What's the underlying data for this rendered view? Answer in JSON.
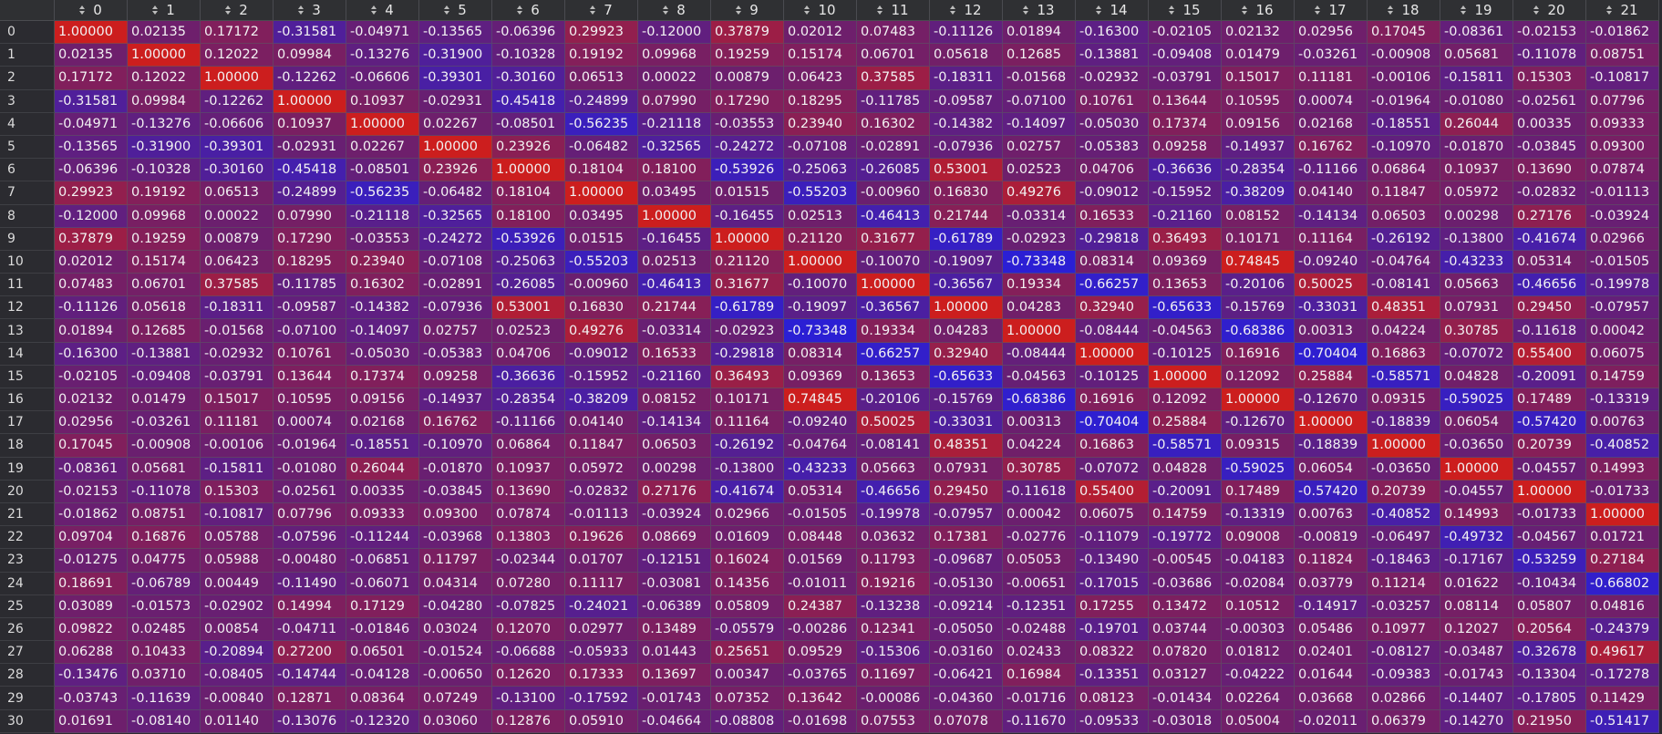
{
  "columns": [
    "0",
    "1",
    "2",
    "3",
    "4",
    "5",
    "6",
    "7",
    "8",
    "9",
    "10",
    "11",
    "12",
    "13",
    "14",
    "15",
    "16",
    "17",
    "18",
    "19",
    "20",
    "21"
  ],
  "row_labels": [
    "0",
    "1",
    "2",
    "3",
    "4",
    "5",
    "6",
    "7",
    "8",
    "9",
    "10",
    "11",
    "12",
    "13",
    "14",
    "15",
    "16",
    "17",
    "18",
    "19",
    "20",
    "21",
    "22",
    "23",
    "24",
    "25",
    "26",
    "27",
    "28",
    "29",
    "30"
  ],
  "colors": {
    "negative": "#2a1fd6",
    "neutral": "#6b1f6e",
    "positive": "#cc1e1e",
    "background": "#2b2b30"
  },
  "icons": {
    "header_sort": "sort-updown-icon"
  },
  "rows": [
    [
      "1.00000",
      "0.02135",
      "0.17172",
      "-0.31581",
      "-0.04971",
      "-0.13565",
      "-0.06396",
      "0.29923",
      "-0.12000",
      "0.37879",
      "0.02012",
      "0.07483",
      "-0.11126",
      "0.01894",
      "-0.16300",
      "-0.02105",
      "0.02132",
      "0.02956",
      "0.17045",
      "-0.08361",
      "-0.02153",
      "-0.01862"
    ],
    [
      "0.02135",
      "1.00000",
      "0.12022",
      "0.09984",
      "-0.13276",
      "-0.31900",
      "-0.10328",
      "0.19192",
      "0.09968",
      "0.19259",
      "0.15174",
      "0.06701",
      "0.05618",
      "0.12685",
      "-0.13881",
      "-0.09408",
      "0.01479",
      "-0.03261",
      "-0.00908",
      "0.05681",
      "-0.11078",
      "0.08751"
    ],
    [
      "0.17172",
      "0.12022",
      "1.00000",
      "-0.12262",
      "-0.06606",
      "-0.39301",
      "-0.30160",
      "0.06513",
      "0.00022",
      "0.00879",
      "0.06423",
      "0.37585",
      "-0.18311",
      "-0.01568",
      "-0.02932",
      "-0.03791",
      "0.15017",
      "0.11181",
      "-0.00106",
      "-0.15811",
      "0.15303",
      "-0.10817"
    ],
    [
      "-0.31581",
      "0.09984",
      "-0.12262",
      "1.00000",
      "0.10937",
      "-0.02931",
      "-0.45418",
      "-0.24899",
      "0.07990",
      "0.17290",
      "0.18295",
      "-0.11785",
      "-0.09587",
      "-0.07100",
      "0.10761",
      "0.13644",
      "0.10595",
      "0.00074",
      "-0.01964",
      "-0.01080",
      "-0.02561",
      "0.07796"
    ],
    [
      "-0.04971",
      "-0.13276",
      "-0.06606",
      "0.10937",
      "1.00000",
      "0.02267",
      "-0.08501",
      "-0.56235",
      "-0.21118",
      "-0.03553",
      "0.23940",
      "0.16302",
      "-0.14382",
      "-0.14097",
      "-0.05030",
      "0.17374",
      "0.09156",
      "0.02168",
      "-0.18551",
      "0.26044",
      "0.00335",
      "0.09333"
    ],
    [
      "-0.13565",
      "-0.31900",
      "-0.39301",
      "-0.02931",
      "0.02267",
      "1.00000",
      "0.23926",
      "-0.06482",
      "-0.32565",
      "-0.24272",
      "-0.07108",
      "-0.02891",
      "-0.07936",
      "0.02757",
      "-0.05383",
      "0.09258",
      "-0.14937",
      "0.16762",
      "-0.10970",
      "-0.01870",
      "-0.03845",
      "0.09300"
    ],
    [
      "-0.06396",
      "-0.10328",
      "-0.30160",
      "-0.45418",
      "-0.08501",
      "0.23926",
      "1.00000",
      "0.18104",
      "0.18100",
      "-0.53926",
      "-0.25063",
      "-0.26085",
      "0.53001",
      "0.02523",
      "0.04706",
      "-0.36636",
      "-0.28354",
      "-0.11166",
      "0.06864",
      "0.10937",
      "0.13690",
      "0.07874"
    ],
    [
      "0.29923",
      "0.19192",
      "0.06513",
      "-0.24899",
      "-0.56235",
      "-0.06482",
      "0.18104",
      "1.00000",
      "0.03495",
      "0.01515",
      "-0.55203",
      "-0.00960",
      "0.16830",
      "0.49276",
      "-0.09012",
      "-0.15952",
      "-0.38209",
      "0.04140",
      "0.11847",
      "0.05972",
      "-0.02832",
      "-0.01113"
    ],
    [
      "-0.12000",
      "0.09968",
      "0.00022",
      "0.07990",
      "-0.21118",
      "-0.32565",
      "0.18100",
      "0.03495",
      "1.00000",
      "-0.16455",
      "0.02513",
      "-0.46413",
      "0.21744",
      "-0.03314",
      "0.16533",
      "-0.21160",
      "0.08152",
      "-0.14134",
      "0.06503",
      "0.00298",
      "0.27176",
      "-0.03924"
    ],
    [
      "0.37879",
      "0.19259",
      "0.00879",
      "0.17290",
      "-0.03553",
      "-0.24272",
      "-0.53926",
      "0.01515",
      "-0.16455",
      "1.00000",
      "0.21120",
      "0.31677",
      "-0.61789",
      "-0.02923",
      "-0.29818",
      "0.36493",
      "0.10171",
      "0.11164",
      "-0.26192",
      "-0.13800",
      "-0.41674",
      "0.02966"
    ],
    [
      "0.02012",
      "0.15174",
      "0.06423",
      "0.18295",
      "0.23940",
      "-0.07108",
      "-0.25063",
      "-0.55203",
      "0.02513",
      "0.21120",
      "1.00000",
      "-0.10070",
      "-0.19097",
      "-0.73348",
      "0.08314",
      "0.09369",
      "0.74845",
      "-0.09240",
      "-0.04764",
      "-0.43233",
      "0.05314",
      "-0.01505"
    ],
    [
      "0.07483",
      "0.06701",
      "0.37585",
      "-0.11785",
      "0.16302",
      "-0.02891",
      "-0.26085",
      "-0.00960",
      "-0.46413",
      "0.31677",
      "-0.10070",
      "1.00000",
      "-0.36567",
      "0.19334",
      "-0.66257",
      "0.13653",
      "-0.20106",
      "0.50025",
      "-0.08141",
      "0.05663",
      "-0.46656",
      "-0.19978"
    ],
    [
      "-0.11126",
      "0.05618",
      "-0.18311",
      "-0.09587",
      "-0.14382",
      "-0.07936",
      "0.53001",
      "0.16830",
      "0.21744",
      "-0.61789",
      "-0.19097",
      "-0.36567",
      "1.00000",
      "0.04283",
      "0.32940",
      "-0.65633",
      "-0.15769",
      "-0.33031",
      "0.48351",
      "0.07931",
      "0.29450",
      "-0.07957"
    ],
    [
      "0.01894",
      "0.12685",
      "-0.01568",
      "-0.07100",
      "-0.14097",
      "0.02757",
      "0.02523",
      "0.49276",
      "-0.03314",
      "-0.02923",
      "-0.73348",
      "0.19334",
      "0.04283",
      "1.00000",
      "-0.08444",
      "-0.04563",
      "-0.68386",
      "0.00313",
      "0.04224",
      "0.30785",
      "-0.11618",
      "0.00042"
    ],
    [
      "-0.16300",
      "-0.13881",
      "-0.02932",
      "0.10761",
      "-0.05030",
      "-0.05383",
      "0.04706",
      "-0.09012",
      "0.16533",
      "-0.29818",
      "0.08314",
      "-0.66257",
      "0.32940",
      "-0.08444",
      "1.00000",
      "-0.10125",
      "0.16916",
      "-0.70404",
      "0.16863",
      "-0.07072",
      "0.55400",
      "0.06075"
    ],
    [
      "-0.02105",
      "-0.09408",
      "-0.03791",
      "0.13644",
      "0.17374",
      "0.09258",
      "-0.36636",
      "-0.15952",
      "-0.21160",
      "0.36493",
      "0.09369",
      "0.13653",
      "-0.65633",
      "-0.04563",
      "-0.10125",
      "1.00000",
      "0.12092",
      "0.25884",
      "-0.58571",
      "0.04828",
      "-0.20091",
      "0.14759"
    ],
    [
      "0.02132",
      "0.01479",
      "0.15017",
      "0.10595",
      "0.09156",
      "-0.14937",
      "-0.28354",
      "-0.38209",
      "0.08152",
      "0.10171",
      "0.74845",
      "-0.20106",
      "-0.15769",
      "-0.68386",
      "0.16916",
      "0.12092",
      "1.00000",
      "-0.12670",
      "0.09315",
      "-0.59025",
      "0.17489",
      "-0.13319"
    ],
    [
      "0.02956",
      "-0.03261",
      "0.11181",
      "0.00074",
      "0.02168",
      "0.16762",
      "-0.11166",
      "0.04140",
      "-0.14134",
      "0.11164",
      "-0.09240",
      "0.50025",
      "-0.33031",
      "0.00313",
      "-0.70404",
      "0.25884",
      "-0.12670",
      "1.00000",
      "-0.18839",
      "0.06054",
      "-0.57420",
      "0.00763"
    ],
    [
      "0.17045",
      "-0.00908",
      "-0.00106",
      "-0.01964",
      "-0.18551",
      "-0.10970",
      "0.06864",
      "0.11847",
      "0.06503",
      "-0.26192",
      "-0.04764",
      "-0.08141",
      "0.48351",
      "0.04224",
      "0.16863",
      "-0.58571",
      "0.09315",
      "-0.18839",
      "1.00000",
      "-0.03650",
      "0.20739",
      "-0.40852"
    ],
    [
      "-0.08361",
      "0.05681",
      "-0.15811",
      "-0.01080",
      "0.26044",
      "-0.01870",
      "0.10937",
      "0.05972",
      "0.00298",
      "-0.13800",
      "-0.43233",
      "0.05663",
      "0.07931",
      "0.30785",
      "-0.07072",
      "0.04828",
      "-0.59025",
      "0.06054",
      "-0.03650",
      "1.00000",
      "-0.04557",
      "0.14993"
    ],
    [
      "-0.02153",
      "-0.11078",
      "0.15303",
      "-0.02561",
      "0.00335",
      "-0.03845",
      "0.13690",
      "-0.02832",
      "0.27176",
      "-0.41674",
      "0.05314",
      "-0.46656",
      "0.29450",
      "-0.11618",
      "0.55400",
      "-0.20091",
      "0.17489",
      "-0.57420",
      "0.20739",
      "-0.04557",
      "1.00000",
      "-0.01733"
    ],
    [
      "-0.01862",
      "0.08751",
      "-0.10817",
      "0.07796",
      "0.09333",
      "0.09300",
      "0.07874",
      "-0.01113",
      "-0.03924",
      "0.02966",
      "-0.01505",
      "-0.19978",
      "-0.07957",
      "0.00042",
      "0.06075",
      "0.14759",
      "-0.13319",
      "0.00763",
      "-0.40852",
      "0.14993",
      "-0.01733",
      "1.00000"
    ],
    [
      "0.09704",
      "0.16876",
      "0.05788",
      "-0.07596",
      "-0.11244",
      "-0.03968",
      "0.13803",
      "0.19626",
      "0.08669",
      "0.01609",
      "0.08448",
      "0.03632",
      "0.17381",
      "-0.02776",
      "-0.11079",
      "-0.19772",
      "0.09008",
      "-0.00819",
      "-0.06497",
      "-0.49732",
      "-0.04567",
      "0.01721"
    ],
    [
      "-0.01275",
      "0.04775",
      "0.05988",
      "-0.00480",
      "-0.06851",
      "0.11797",
      "-0.02344",
      "0.01707",
      "-0.12151",
      "0.16024",
      "0.01569",
      "0.11793",
      "-0.09687",
      "0.05053",
      "-0.13490",
      "-0.00545",
      "-0.04183",
      "0.11824",
      "-0.18463",
      "-0.17167",
      "-0.53259",
      "0.27184"
    ],
    [
      "0.18691",
      "-0.06789",
      "0.00449",
      "-0.11490",
      "-0.06071",
      "0.04314",
      "0.07280",
      "0.11117",
      "-0.03081",
      "0.14356",
      "-0.01011",
      "0.19216",
      "-0.05130",
      "-0.00651",
      "-0.17015",
      "-0.03686",
      "-0.02084",
      "0.03779",
      "0.11214",
      "0.01622",
      "-0.10434",
      "-0.66802"
    ],
    [
      "0.03089",
      "-0.01573",
      "-0.02902",
      "0.14994",
      "0.17129",
      "-0.04280",
      "-0.07825",
      "-0.24021",
      "-0.06389",
      "0.05809",
      "0.24387",
      "-0.13238",
      "-0.09214",
      "-0.12351",
      "0.17255",
      "0.13472",
      "0.10512",
      "-0.14917",
      "-0.03257",
      "0.08114",
      "0.05807",
      "0.04816"
    ],
    [
      "0.09822",
      "0.02485",
      "0.00854",
      "-0.04711",
      "-0.01846",
      "0.03024",
      "0.12070",
      "0.02977",
      "0.13489",
      "-0.05579",
      "-0.00286",
      "0.12341",
      "-0.05050",
      "-0.02488",
      "-0.19701",
      "0.03744",
      "-0.00303",
      "0.05486",
      "0.10977",
      "0.12027",
      "0.20564",
      "-0.24379"
    ],
    [
      "0.06288",
      "0.10433",
      "-0.20894",
      "0.27200",
      "0.06501",
      "-0.01524",
      "-0.06688",
      "-0.05933",
      "0.01443",
      "0.25651",
      "0.09529",
      "-0.15306",
      "-0.03160",
      "0.02433",
      "0.08322",
      "0.07820",
      "0.01812",
      "0.02401",
      "-0.08127",
      "-0.03487",
      "-0.32678",
      "0.49617"
    ],
    [
      "-0.13476",
      "0.03710",
      "-0.08405",
      "-0.14744",
      "-0.04128",
      "-0.00650",
      "0.12620",
      "0.17333",
      "0.13697",
      "0.00347",
      "-0.03765",
      "0.11697",
      "-0.06421",
      "0.16984",
      "-0.13351",
      "0.03127",
      "-0.04222",
      "0.01644",
      "-0.09383",
      "-0.01743",
      "-0.13304",
      "-0.17278"
    ],
    [
      "-0.03743",
      "-0.11639",
      "-0.00840",
      "0.12871",
      "0.08364",
      "0.07249",
      "-0.13100",
      "-0.17592",
      "-0.01743",
      "0.07352",
      "0.13642",
      "-0.00086",
      "-0.04360",
      "-0.01716",
      "0.08123",
      "-0.01434",
      "0.02264",
      "0.03668",
      "0.02866",
      "-0.14407",
      "-0.17805",
      "0.11429"
    ],
    [
      "0.01691",
      "-0.08140",
      "0.01140",
      "-0.13076",
      "-0.12320",
      "0.03060",
      "0.12876",
      "0.05910",
      "-0.04664",
      "-0.08808",
      "-0.01698",
      "0.07553",
      "0.07078",
      "-0.11670",
      "-0.09533",
      "-0.03018",
      "0.05004",
      "-0.02011",
      "0.06379",
      "-0.14270",
      "0.21950",
      "-0.51417"
    ]
  ]
}
